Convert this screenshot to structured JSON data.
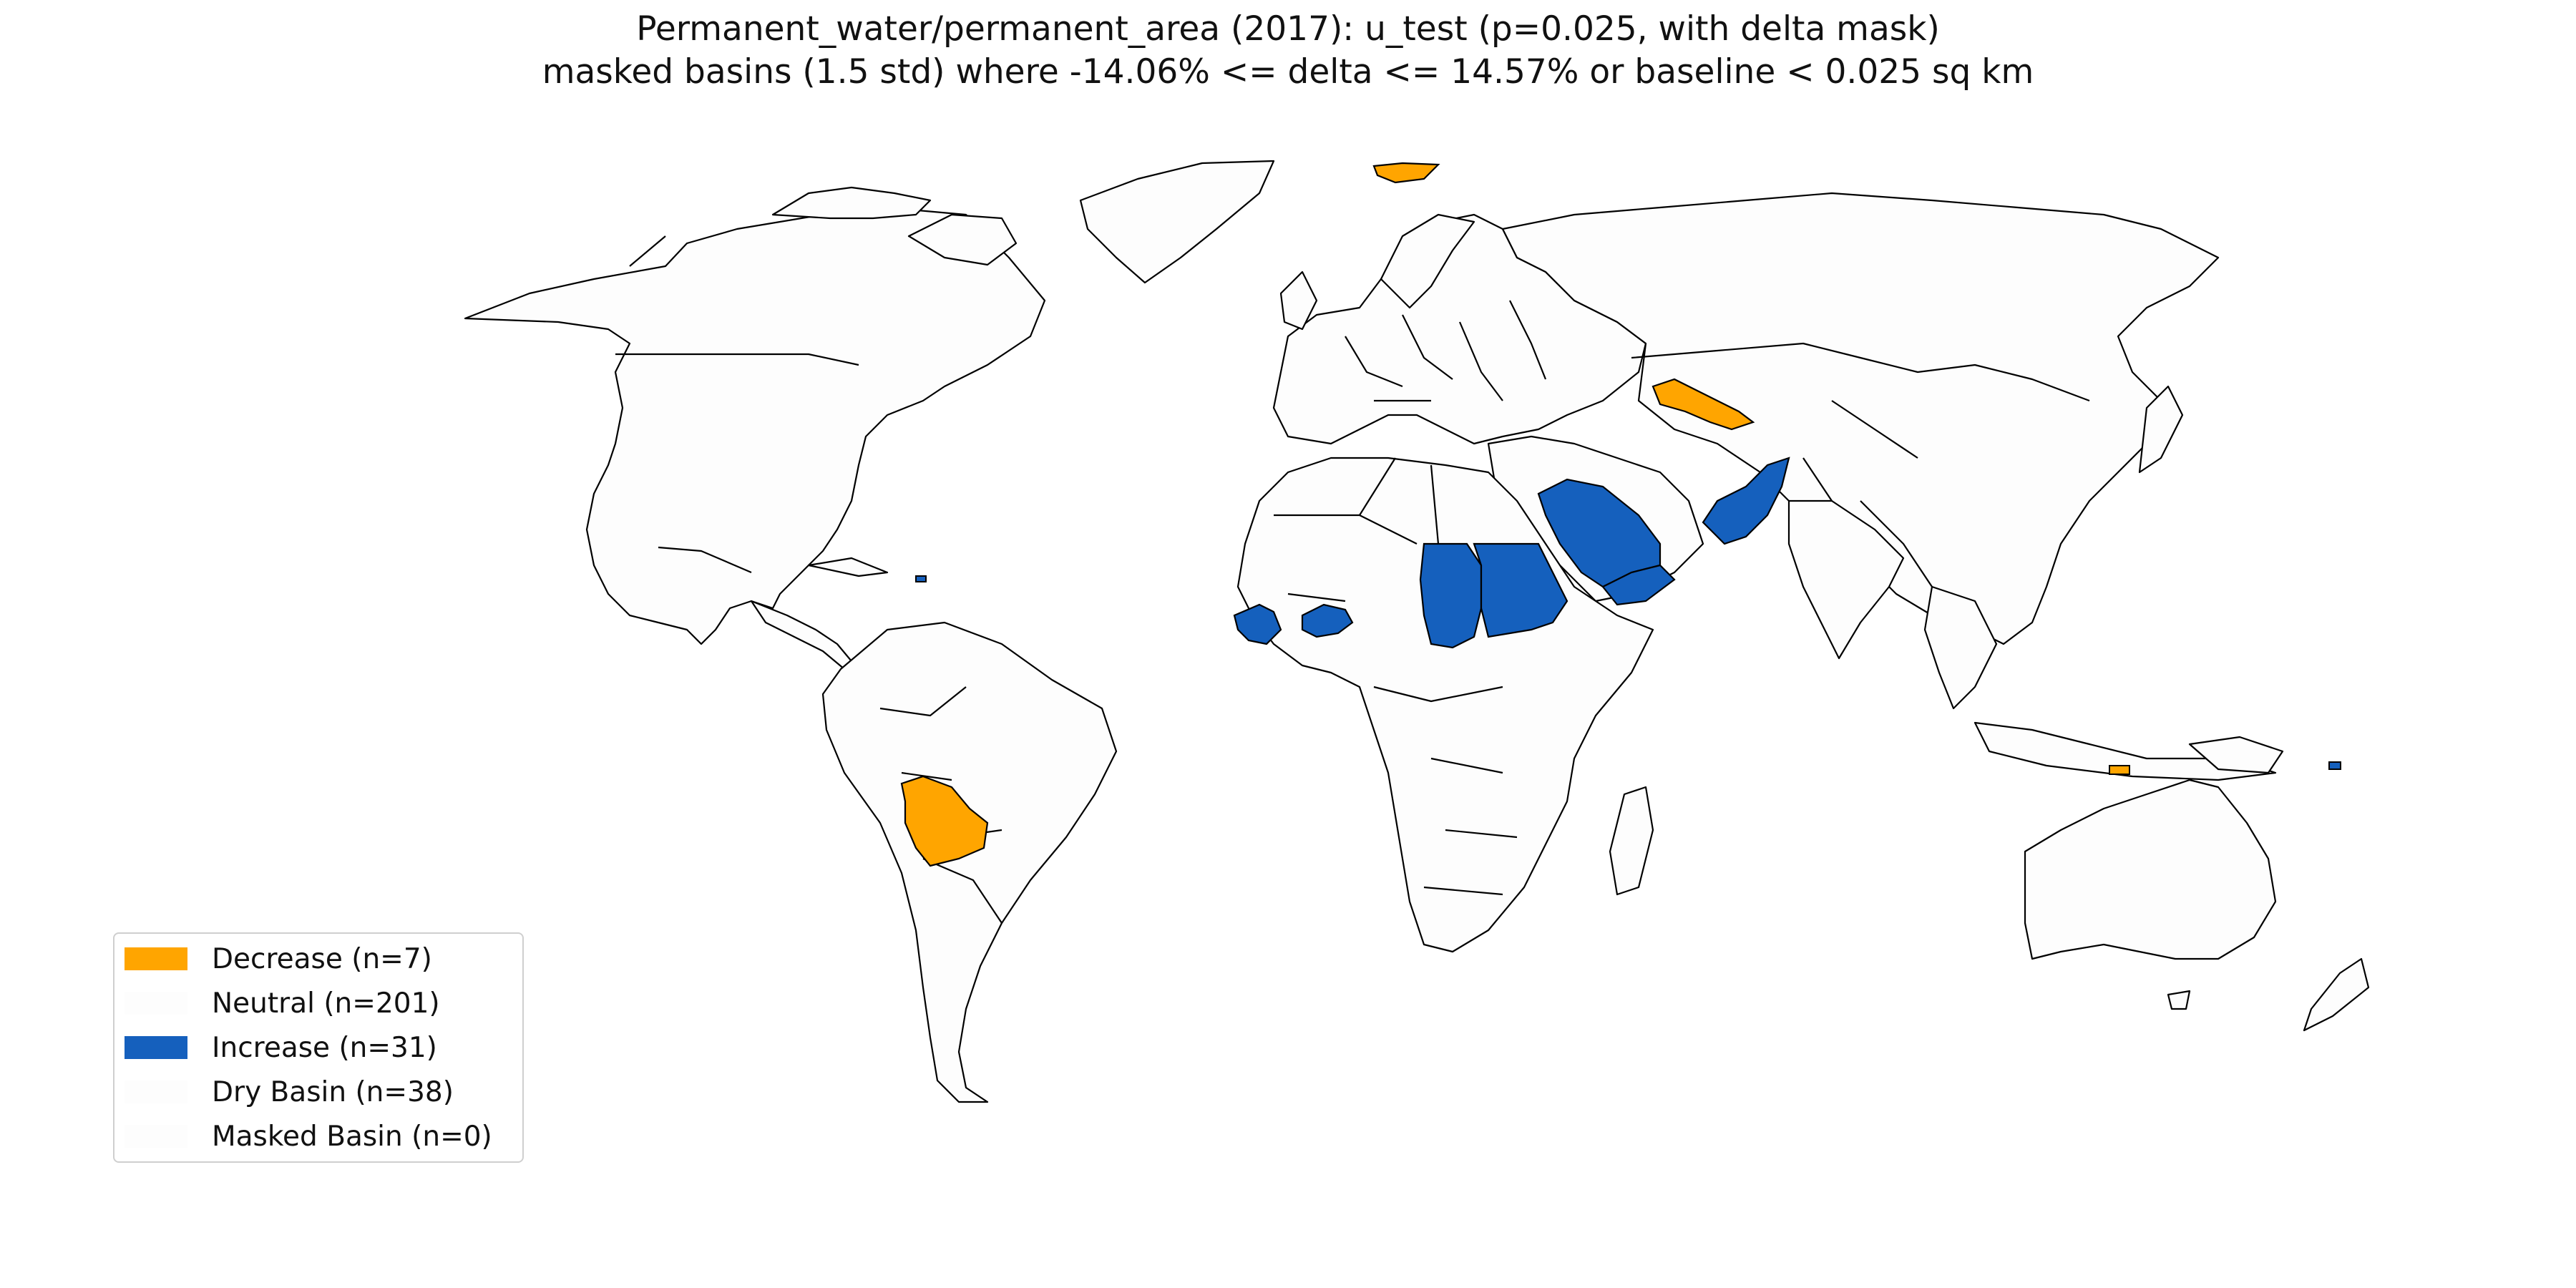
{
  "title": {
    "line1": "Permanent_water/permanent_area (2017): u_test (p=0.025, with delta mask)",
    "line2": "masked basins (1.5 std) where -14.06% <= delta <= 14.57% or baseline < 0.025 sq km"
  },
  "colors": {
    "decrease": "#FFA500",
    "neutral": "#FDFDFD",
    "increase": "#1560BD",
    "dry": "#FDFDFD",
    "masked": "#FDFDFD",
    "border": "#000000"
  },
  "legend": {
    "items": [
      {
        "label": "Decrease (n=7)",
        "color": "#FFA500"
      },
      {
        "label": "Neutral (n=201)",
        "color": "#FDFDFD"
      },
      {
        "label": "Increase (n=31)",
        "color": "#1560BD"
      },
      {
        "label": "Dry Basin (n=38)",
        "color": "#FDFDFD"
      },
      {
        "label": "Masked Basin (n=0)",
        "color": "#FDFDFD"
      }
    ],
    "placement": "lower-left"
  },
  "regions": {
    "decrease": [
      "Bolivia",
      "Uzbekistan",
      "Svalbard"
    ],
    "increase": [
      "Saudi Arabia",
      "Yemen",
      "Pakistan",
      "Chad",
      "Sudan",
      "Burkina Faso",
      "Guinea",
      "Sierra Leone"
    ]
  }
}
